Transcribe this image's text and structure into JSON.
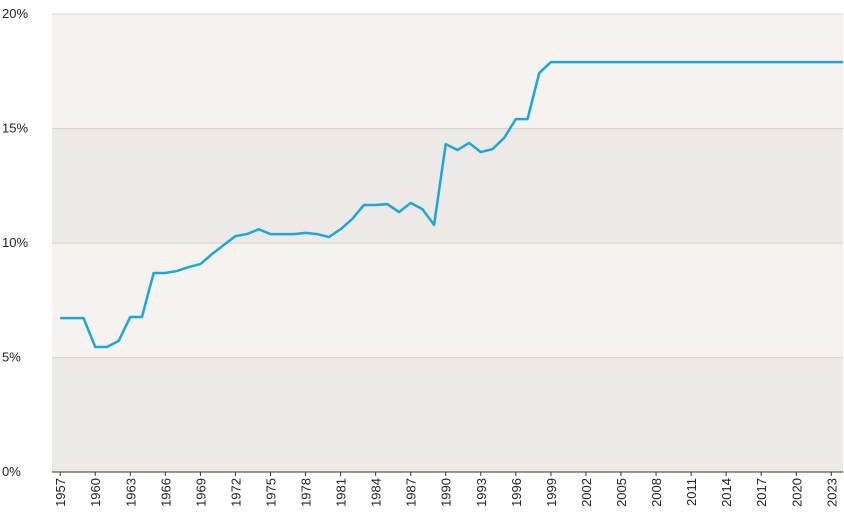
{
  "chart_data": {
    "type": "line",
    "x": [
      1957,
      1958,
      1959,
      1960,
      1961,
      1962,
      1963,
      1964,
      1965,
      1966,
      1967,
      1968,
      1969,
      1970,
      1971,
      1972,
      1973,
      1974,
      1975,
      1976,
      1977,
      1978,
      1979,
      1980,
      1981,
      1982,
      1983,
      1984,
      1985,
      1986,
      1987,
      1988,
      1989,
      1990,
      1991,
      1992,
      1993,
      1994,
      1995,
      1996,
      1997,
      1998,
      1999,
      2000,
      2001,
      2002,
      2003,
      2004,
      2005,
      2006,
      2007,
      2008,
      2009,
      2010,
      2011,
      2012,
      2013,
      2014,
      2015,
      2016,
      2017,
      2018,
      2019,
      2020,
      2021,
      2022,
      2023,
      2024
    ],
    "values": [
      6.72,
      6.72,
      6.72,
      5.46,
      5.46,
      5.72,
      6.77,
      6.77,
      8.69,
      8.69,
      8.78,
      8.95,
      9.08,
      9.52,
      9.91,
      10.3,
      10.39,
      10.6,
      10.39,
      10.39,
      10.39,
      10.44,
      10.39,
      10.26,
      10.6,
      11.05,
      11.66,
      11.66,
      11.7,
      11.35,
      11.75,
      11.48,
      10.79,
      14.32,
      14.06,
      14.37,
      13.97,
      14.1,
      14.59,
      15.41,
      15.41,
      17.42,
      17.9,
      17.9,
      17.9,
      17.9,
      17.9,
      17.9,
      17.9,
      17.9,
      17.9,
      17.9,
      17.9,
      17.9,
      17.9,
      17.9,
      17.9,
      17.9,
      17.9,
      17.9,
      17.9,
      17.9,
      17.9,
      17.9,
      17.9,
      17.9,
      17.9,
      17.9
    ],
    "color": "#1aa7dc",
    "xlim": [
      1956.3,
      2024
    ],
    "xticks": [
      1957,
      1960,
      1963,
      1966,
      1969,
      1972,
      1975,
      1978,
      1981,
      1984,
      1987,
      1990,
      1993,
      1996,
      1999,
      2002,
      2005,
      2008,
      2011,
      2014,
      2017,
      2020,
      2023
    ],
    "ylim": [
      0,
      20
    ],
    "yticks": [
      {
        "value": 0,
        "label": "0%"
      },
      {
        "value": 5,
        "label": "5%"
      },
      {
        "value": 10,
        "label": "10%"
      },
      {
        "value": 15,
        "label": "15%"
      },
      {
        "value": 20,
        "label": "20%"
      }
    ],
    "grid": true
  }
}
